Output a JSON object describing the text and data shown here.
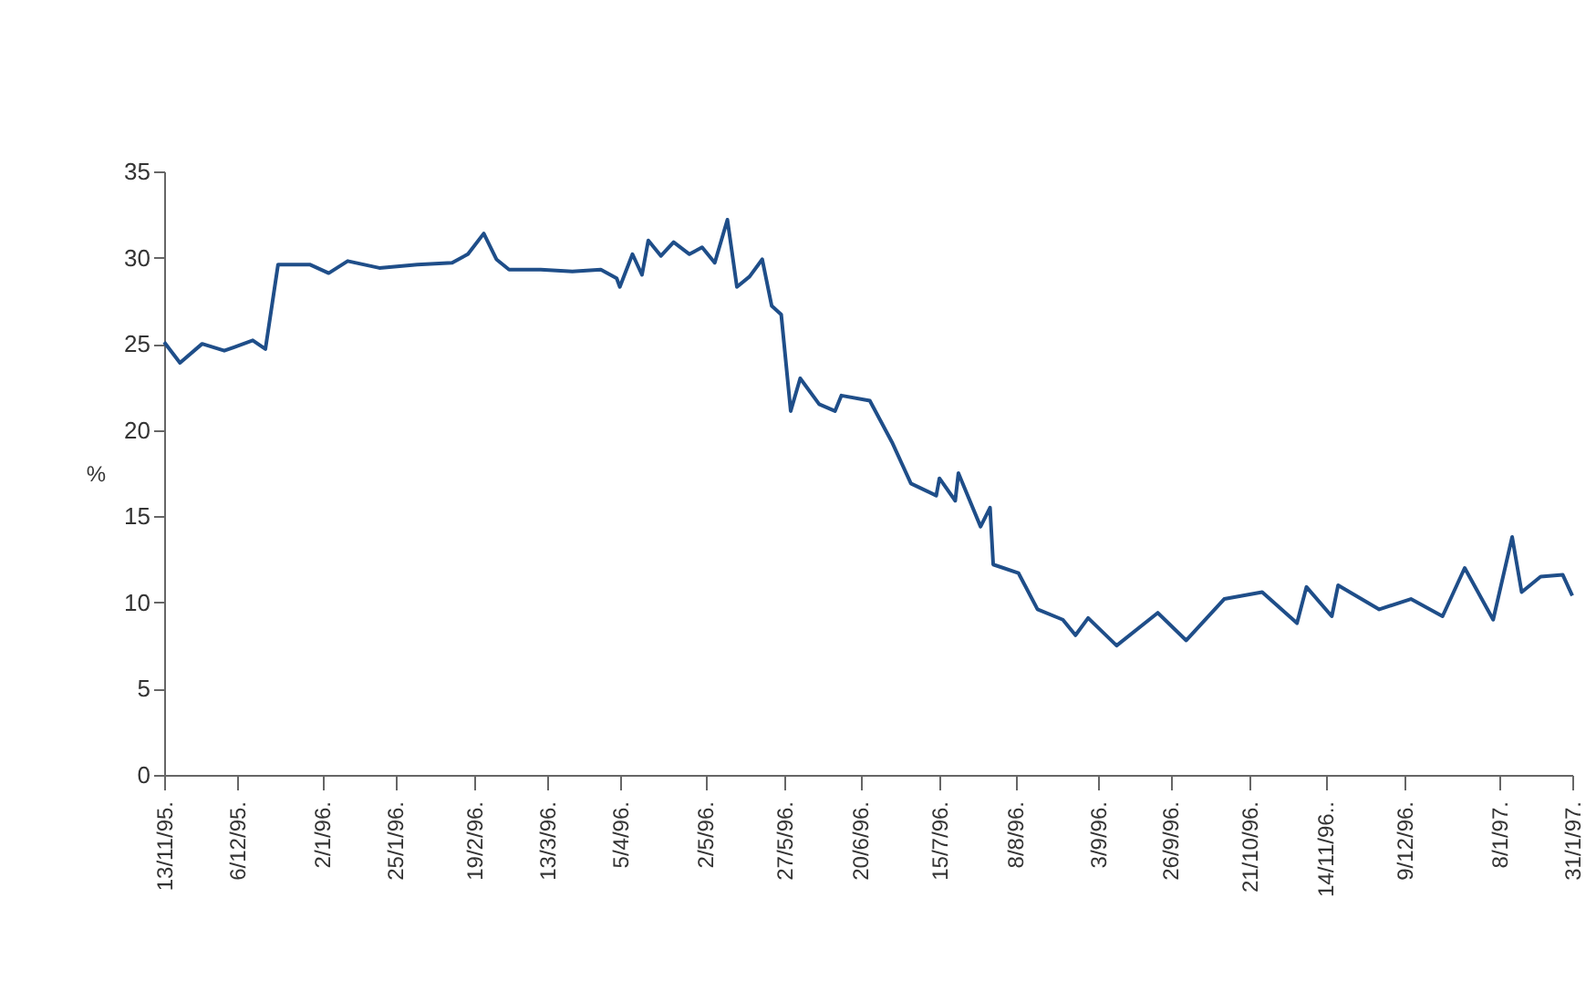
{
  "chart_data": {
    "type": "line",
    "ylabel": "%",
    "x": [
      "1995-11-13",
      "1995-11-18",
      "1995-11-25",
      "1995-12-02",
      "1995-12-11",
      "1995-12-15",
      "1995-12-19",
      "1995-12-29",
      "1996-01-04",
      "1996-01-10",
      "1996-01-20",
      "1996-02-01",
      "1996-02-12",
      "1996-02-17",
      "1996-02-22",
      "1996-02-26",
      "1996-03-01",
      "1996-03-11",
      "1996-03-21",
      "1996-03-30",
      "1996-04-04",
      "1996-04-05",
      "1996-04-09",
      "1996-04-12",
      "1996-04-14",
      "1996-04-18",
      "1996-04-22",
      "1996-04-27",
      "1996-05-01",
      "1996-05-05",
      "1996-05-09",
      "1996-05-12",
      "1996-05-16",
      "1996-05-20",
      "1996-05-23",
      "1996-05-26",
      "1996-05-29",
      "1996-06-01",
      "1996-06-07",
      "1996-06-12",
      "1996-06-14",
      "1996-06-23",
      "1996-06-30",
      "1996-07-06",
      "1996-07-14",
      "1996-07-15",
      "1996-07-20",
      "1996-07-21",
      "1996-07-28",
      "1996-07-31",
      "1996-08-01",
      "1996-08-09",
      "1996-08-15",
      "1996-08-23",
      "1996-08-27",
      "1996-08-31",
      "1996-09-09",
      "1996-09-22",
      "1996-10-01",
      "1996-10-13",
      "1996-10-25",
      "1996-11-05",
      "1996-11-08",
      "1996-11-16",
      "1996-11-18",
      "1996-12-01",
      "1996-12-11",
      "1996-12-21",
      "1996-12-28",
      "1997-01-06",
      "1997-01-12",
      "1997-01-15",
      "1997-01-21",
      "1997-01-28",
      "1997-01-31"
    ],
    "series": [
      {
        "color": "#1f4e89",
        "values": [
          25.1,
          23.9,
          25.0,
          24.6,
          25.2,
          24.7,
          29.6,
          29.6,
          29.1,
          29.8,
          29.4,
          29.6,
          29.7,
          30.2,
          31.4,
          29.9,
          29.3,
          29.3,
          29.2,
          29.3,
          28.8,
          28.3,
          30.2,
          29.0,
          31.0,
          30.1,
          30.9,
          30.2,
          30.6,
          29.7,
          32.2,
          28.3,
          28.9,
          29.9,
          27.2,
          26.7,
          21.1,
          23.0,
          21.5,
          21.1,
          22.0,
          21.7,
          19.3,
          16.9,
          16.2,
          17.2,
          15.9,
          17.5,
          14.4,
          15.5,
          12.2,
          11.7,
          9.6,
          9.0,
          8.1,
          9.1,
          7.5,
          9.4,
          7.8,
          10.2,
          10.6,
          8.8,
          10.9,
          9.2,
          11.0,
          9.6,
          10.2,
          9.2,
          12.0,
          9.0,
          13.8,
          10.6,
          11.5,
          11.6,
          10.4
        ]
      }
    ],
    "xlim": [
      "1995-11-13",
      "1997-01-31"
    ],
    "xticks": [
      {
        "value": "1995-11-13",
        "label": "13/11/95."
      },
      {
        "value": "1995-12-06",
        "label": "6/12/95."
      },
      {
        "value": "1996-01-02",
        "label": "2/1/96."
      },
      {
        "value": "1996-01-25",
        "label": "25/1/96."
      },
      {
        "value": "1996-02-19",
        "label": "19/2/96."
      },
      {
        "value": "1996-03-13",
        "label": "13/3/96."
      },
      {
        "value": "1996-04-05",
        "label": "5/4/96."
      },
      {
        "value": "1996-05-02",
        "label": "2/5/96."
      },
      {
        "value": "1996-05-27",
        "label": "27/5/96."
      },
      {
        "value": "1996-06-20",
        "label": "20/6/96."
      },
      {
        "value": "1996-07-15",
        "label": "15/7/96."
      },
      {
        "value": "1996-08-08",
        "label": "8/8/96."
      },
      {
        "value": "1996-09-03",
        "label": "3/9/96."
      },
      {
        "value": "1996-09-26",
        "label": "26/9/96."
      },
      {
        "value": "1996-10-21",
        "label": "21/10/96."
      },
      {
        "value": "1996-11-14",
        "label": "14/11/96.."
      },
      {
        "value": "1996-12-09",
        "label": "9/12/96."
      },
      {
        "value": "1997-01-08",
        "label": "8/1/97."
      },
      {
        "value": "1997-01-31",
        "label": "31/1/97."
      }
    ],
    "ylim": [
      0,
      35
    ],
    "yticks": [
      0,
      5,
      10,
      15,
      20,
      25,
      30,
      35
    ],
    "grid": false,
    "legend": false,
    "marker": "none",
    "line_style": "solid"
  }
}
